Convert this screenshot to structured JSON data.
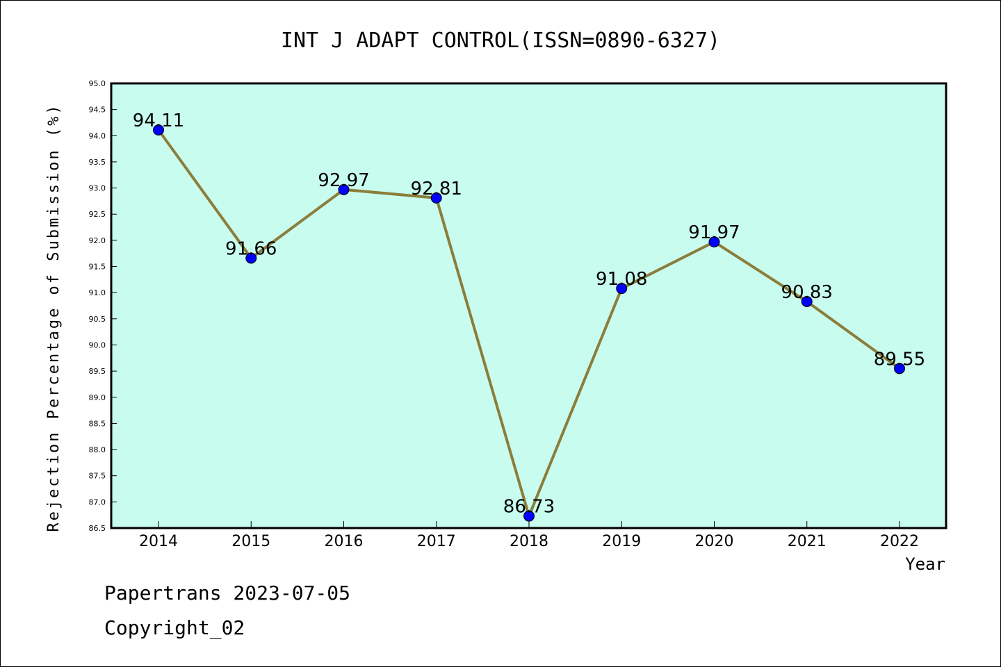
{
  "chart_data": {
    "type": "line",
    "title": "INT J ADAPT CONTROL(ISSN=0890-6327)",
    "xlabel": "Year",
    "ylabel": "Rejection Percentage of Submission (%)",
    "categories": [
      "2014",
      "2015",
      "2016",
      "2017",
      "2018",
      "2019",
      "2020",
      "2021",
      "2022"
    ],
    "values": [
      94.11,
      91.66,
      92.97,
      92.81,
      86.73,
      91.08,
      91.97,
      90.83,
      89.55
    ],
    "value_labels": [
      "94.11",
      "91.66",
      "92.97",
      "92.81",
      "86.73",
      "91.08",
      "91.97",
      "90.83",
      "89.55"
    ],
    "ylim": [
      86.5,
      95.0
    ],
    "yticks": [
      "86.5",
      "87.0",
      "87.5",
      "88.0",
      "88.5",
      "89.0",
      "89.5",
      "90.0",
      "90.5",
      "91.0",
      "91.5",
      "92.0",
      "92.5",
      "93.0",
      "93.5",
      "94.0",
      "94.5",
      "95.0"
    ],
    "grid": false,
    "colors": {
      "plot_background": "#c8fcee",
      "line": "#8b7d3a",
      "marker": "#0000ff"
    }
  },
  "footer": {
    "line1": "Papertrans 2023-07-05",
    "line2": "Copyright_02"
  }
}
